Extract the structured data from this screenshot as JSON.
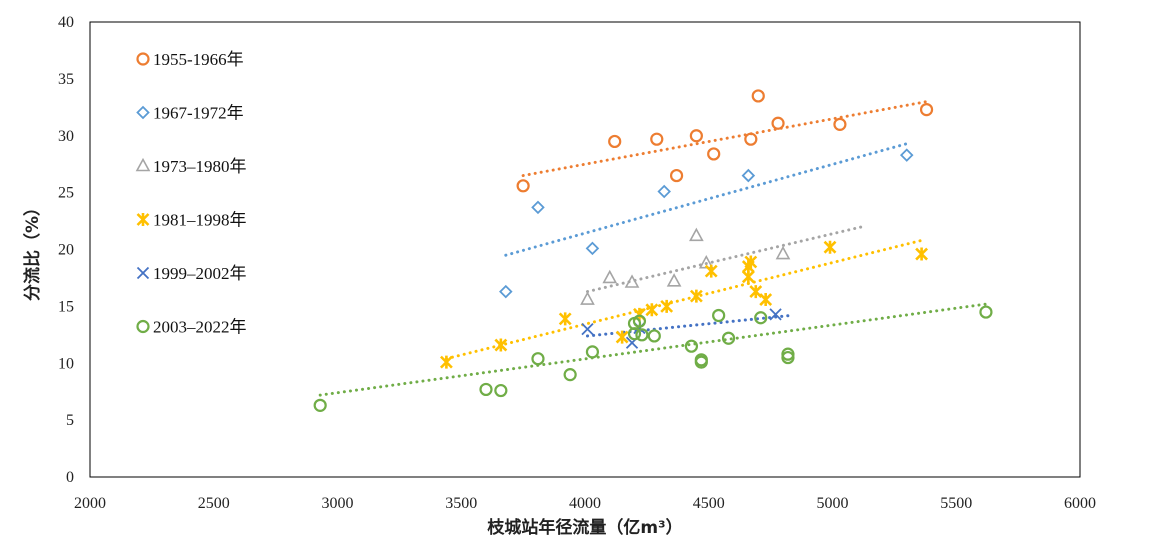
{
  "chart_data": {
    "type": "scatter",
    "xlabel": "枝城站年径流量（亿m³）",
    "ylabel": "分流比（%）",
    "xlim": [
      2000,
      6000
    ],
    "ylim": [
      0,
      40
    ],
    "xticks": [
      2000,
      2500,
      3000,
      3500,
      4000,
      4500,
      5000,
      5500,
      6000
    ],
    "yticks": [
      0,
      5,
      10,
      15,
      20,
      25,
      30,
      35,
      40
    ],
    "grid": false,
    "legend_position": "top-left",
    "series": [
      {
        "name": "1955-1966年",
        "marker": "circle",
        "color": "#ED7D31",
        "points": [
          [
            3750,
            25.6
          ],
          [
            4120,
            29.5
          ],
          [
            4290,
            29.7
          ],
          [
            4370,
            26.5
          ],
          [
            4450,
            30.0
          ],
          [
            4520,
            28.4
          ],
          [
            4670,
            29.7
          ],
          [
            4700,
            33.5
          ],
          [
            4780,
            31.1
          ],
          [
            5030,
            31.0
          ],
          [
            5380,
            32.3
          ]
        ],
        "trend": [
          [
            3750,
            26.5
          ],
          [
            5380,
            33.0
          ]
        ]
      },
      {
        "name": "1967-1972年",
        "marker": "diamond",
        "color": "#5B9BD5",
        "points": [
          [
            3680,
            16.3
          ],
          [
            3810,
            23.7
          ],
          [
            4030,
            20.1
          ],
          [
            4320,
            25.1
          ],
          [
            4660,
            26.5
          ],
          [
            5300,
            28.3
          ]
        ],
        "trend": [
          [
            3680,
            19.5
          ],
          [
            5300,
            29.3
          ]
        ]
      },
      {
        "name": "1973–1980年",
        "marker": "triangle",
        "color": "#A5A5A5",
        "points": [
          [
            4010,
            15.6
          ],
          [
            4100,
            17.5
          ],
          [
            4190,
            17.1
          ],
          [
            4360,
            17.2
          ],
          [
            4450,
            21.2
          ],
          [
            4490,
            18.8
          ],
          [
            4800,
            19.6
          ]
        ],
        "trend": [
          [
            4010,
            16.3
          ],
          [
            5120,
            22.0
          ]
        ]
      },
      {
        "name": "1981–1998年",
        "marker": "asterisk",
        "color": "#FFC000",
        "points": [
          [
            3440,
            10.1
          ],
          [
            3660,
            11.6
          ],
          [
            3920,
            13.9
          ],
          [
            4150,
            12.3
          ],
          [
            4220,
            14.3
          ],
          [
            4270,
            14.7
          ],
          [
            4330,
            15.0
          ],
          [
            4450,
            15.9
          ],
          [
            4510,
            18.1
          ],
          [
            4660,
            17.6
          ],
          [
            4660,
            18.5
          ],
          [
            4670,
            18.9
          ],
          [
            4690,
            16.3
          ],
          [
            4730,
            15.6
          ],
          [
            4990,
            20.2
          ],
          [
            5360,
            19.6
          ]
        ],
        "trend": [
          [
            3440,
            10.4
          ],
          [
            5360,
            20.8
          ]
        ]
      },
      {
        "name": "1999–2002年",
        "marker": "x",
        "color": "#4472C4",
        "points": [
          [
            4010,
            13.0
          ],
          [
            4190,
            11.8
          ],
          [
            4220,
            13.1
          ],
          [
            4770,
            14.3
          ]
        ],
        "trend": [
          [
            4010,
            12.4
          ],
          [
            4830,
            14.2
          ]
        ]
      },
      {
        "name": "2003–2022年",
        "marker": "circle",
        "color": "#70AD47",
        "points": [
          [
            2930,
            6.3
          ],
          [
            3600,
            7.7
          ],
          [
            3660,
            7.6
          ],
          [
            3810,
            10.4
          ],
          [
            3940,
            9.0
          ],
          [
            4030,
            11.0
          ],
          [
            4200,
            12.6
          ],
          [
            4200,
            13.5
          ],
          [
            4220,
            13.7
          ],
          [
            4230,
            12.5
          ],
          [
            4280,
            12.4
          ],
          [
            4430,
            11.5
          ],
          [
            4470,
            10.1
          ],
          [
            4470,
            10.3
          ],
          [
            4540,
            14.2
          ],
          [
            4580,
            12.2
          ],
          [
            4710,
            14.0
          ],
          [
            4820,
            10.5
          ],
          [
            4820,
            10.8
          ],
          [
            5620,
            14.5
          ]
        ],
        "trend": [
          [
            2930,
            7.2
          ],
          [
            5620,
            15.2
          ]
        ]
      }
    ]
  }
}
